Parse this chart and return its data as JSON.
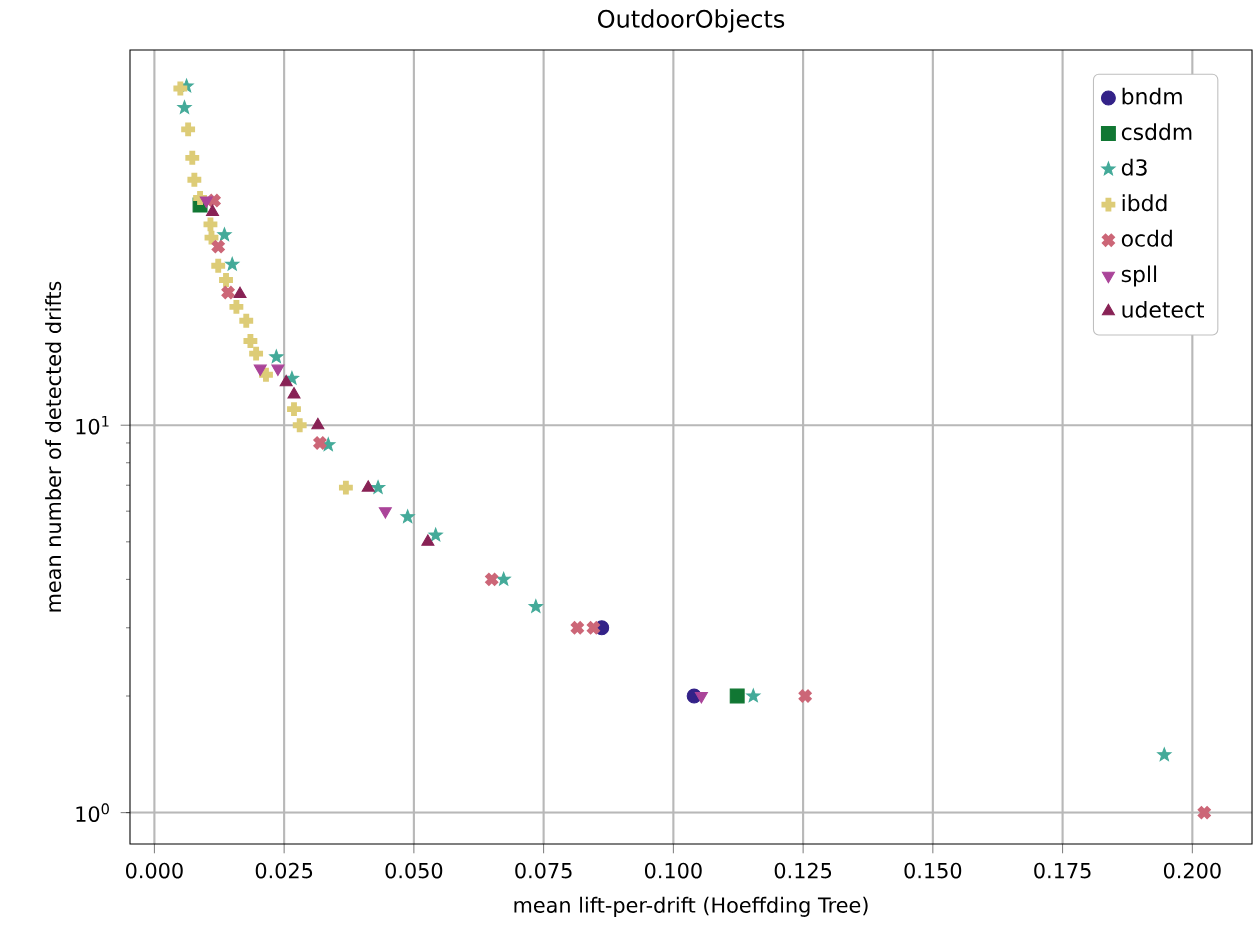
{
  "chart_data": {
    "type": "scatter",
    "title": "OutdoorObjects",
    "xlabel": "mean lift-per-drift (Hoeffding Tree)",
    "ylabel": "mean number of detected drifts",
    "log": "y",
    "grid": true,
    "legend": "top right",
    "xlim": [
      -0.0047,
      0.2115
    ],
    "ylim": [
      0.83,
      93
    ],
    "xticks": [
      {
        "value": 0,
        "label": "0.000"
      },
      {
        "value": 0.025,
        "label": "0.025"
      },
      {
        "value": 0.05,
        "label": "0.050"
      },
      {
        "value": 0.075,
        "label": "0.075"
      },
      {
        "value": 0.1,
        "label": "0.100"
      },
      {
        "value": 0.125,
        "label": "0.125"
      },
      {
        "value": 0.15,
        "label": "0.150"
      },
      {
        "value": 0.175,
        "label": "0.175"
      },
      {
        "value": 0.2,
        "label": "0.200"
      }
    ],
    "yticks": [
      {
        "value": 1,
        "label": "10$^{0}$"
      },
      {
        "value": 10,
        "label": "10$^{1}$"
      }
    ],
    "series": [
      {
        "name": "bndm",
        "color": "#332288",
        "marker": "circle",
        "x": [
          0.0862,
          0.104
        ],
        "values": [
          3,
          2
        ]
      },
      {
        "name": "csddm",
        "color": "#117733",
        "marker": "square",
        "x": [
          0.0088,
          0.1123
        ],
        "values": [
          37,
          2
        ]
      },
      {
        "name": "d3",
        "color": "#44aa99",
        "marker": "star",
        "x": [
          0.0058,
          0.0062,
          0.0135,
          0.015,
          0.0235,
          0.0265,
          0.0335,
          0.0431,
          0.0488,
          0.0542,
          0.0673,
          0.0735,
          0.1154,
          0.1946
        ],
        "values": [
          66,
          75,
          31,
          26,
          15,
          13.2,
          8.9,
          6.9,
          5.8,
          5.2,
          4,
          3.4,
          2,
          1.41
        ]
      },
      {
        "name": "ibdd",
        "color": "#ddcc77",
        "marker": "plus",
        "x": [
          0.005,
          0.0065,
          0.0073,
          0.0077,
          0.0088,
          0.0108,
          0.011,
          0.0123,
          0.0138,
          0.0158,
          0.0177,
          0.0185,
          0.0196,
          0.0215,
          0.0269,
          0.028,
          0.0369
        ],
        "values": [
          74,
          58,
          49,
          43,
          38.6,
          33,
          30.5,
          25.8,
          23.7,
          20.2,
          18.6,
          16.5,
          15.3,
          13.5,
          11,
          10,
          6.9
        ]
      },
      {
        "name": "ocdd",
        "color": "#cc6677",
        "marker": "cross",
        "x": [
          0.0115,
          0.0123,
          0.0142,
          0.0319,
          0.065,
          0.0815,
          0.0846,
          0.1254,
          0.2023
        ],
        "values": [
          38,
          28.9,
          22,
          9,
          4,
          3,
          3,
          2,
          1
        ]
      },
      {
        "name": "spll",
        "color": "#aa4499",
        "marker": "triangle-down",
        "x": [
          0.01,
          0.0204,
          0.0238,
          0.0445,
          0.1054
        ],
        "values": [
          38,
          14,
          14,
          6,
          2
        ]
      },
      {
        "name": "udetect",
        "color": "#882255",
        "marker": "triangle",
        "x": [
          0.0112,
          0.0165,
          0.0254,
          0.0269,
          0.0315,
          0.0412,
          0.0527
        ],
        "values": [
          35.5,
          21.8,
          12.9,
          12,
          10,
          6.9,
          5
        ]
      }
    ]
  }
}
